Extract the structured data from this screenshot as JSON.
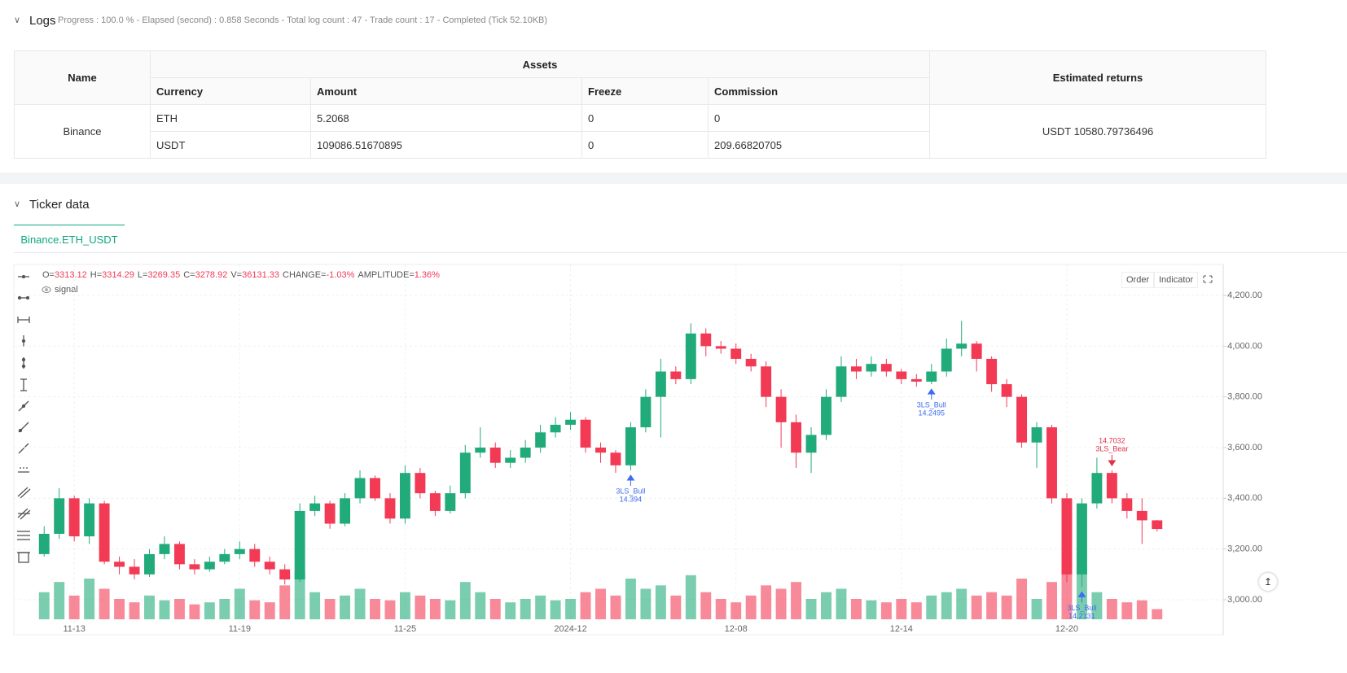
{
  "logs": {
    "title": "Logs",
    "status": "Progress : 100.0 % - Elapsed (second) : 0.858  Seconds - Total log count : 47 - Trade count : 17 - Completed (Tick 52.10KB)"
  },
  "table": {
    "headers": {
      "name": "Name",
      "assets": "Assets",
      "returns": "Estimated returns",
      "columns": [
        "Currency",
        "Amount",
        "Freeze",
        "Commission"
      ]
    },
    "exchange": "Binance",
    "returns": "USDT 10580.79736496",
    "rows": [
      [
        "ETH",
        "5.2068",
        "0",
        "0"
      ],
      [
        "USDT",
        "109086.51670895",
        "0",
        "209.66820705"
      ]
    ]
  },
  "ticker": {
    "title": "Ticker data",
    "tab": "Binance.ETH_USDT",
    "buttons": [
      "Order",
      "Indicator"
    ],
    "legend": "signal"
  },
  "chart_data": {
    "type": "candlestick",
    "info": [
      {
        "label": "O=",
        "value": "3313.12"
      },
      {
        "label": "H=",
        "value": "3314.29"
      },
      {
        "label": "L=",
        "value": "3269.35"
      },
      {
        "label": "C=",
        "value": "3278.92"
      },
      {
        "label": "V=",
        "value": "36131.33"
      },
      {
        "label": "CHANGE=",
        "value": "-1.03%"
      },
      {
        "label": "AMPLITUDE=",
        "value": "1.36%"
      }
    ],
    "categories": [
      null,
      null,
      "11-13",
      null,
      null,
      null,
      null,
      null,
      null,
      null,
      null,
      null,
      null,
      "11-19",
      null,
      null,
      null,
      null,
      null,
      null,
      null,
      null,
      null,
      null,
      "11-25",
      null,
      null,
      null,
      null,
      null,
      null,
      null,
      null,
      null,
      null,
      "2024-12",
      null,
      null,
      null,
      null,
      null,
      null,
      null,
      null,
      null,
      null,
      "12-08",
      null,
      null,
      null,
      null,
      null,
      null,
      null,
      null,
      null,
      null,
      "12-14",
      null,
      null,
      null,
      null,
      null,
      null,
      null,
      null,
      null,
      null,
      "12-20",
      null,
      null,
      null,
      null,
      null,
      null
    ],
    "open": [
      3180,
      3260,
      3400,
      3250,
      3380,
      3150,
      3130,
      3100,
      3180,
      3220,
      3140,
      3120,
      3150,
      3180,
      3200,
      3150,
      3120,
      3080,
      3350,
      3380,
      3300,
      3400,
      3480,
      3400,
      3320,
      3500,
      3420,
      3350,
      3420,
      3580,
      3600,
      3540,
      3560,
      3600,
      3660,
      3690,
      3710,
      3600,
      3580,
      3530,
      3680,
      3800,
      3900,
      3870,
      4050,
      4000,
      3990,
      3950,
      3920,
      3800,
      3700,
      3580,
      3650,
      3800,
      3920,
      3900,
      3930,
      3900,
      3870,
      3860,
      3900,
      3990,
      4010,
      3950,
      3850,
      3800,
      3620,
      3680,
      3400,
      3100,
      3380,
      3500,
      3400,
      3350,
      3313.12
    ],
    "high": [
      3290,
      3440,
      3410,
      3400,
      3390,
      3170,
      3160,
      3200,
      3250,
      3230,
      3160,
      3170,
      3200,
      3230,
      3220,
      3170,
      3140,
      3380,
      3410,
      3390,
      3420,
      3510,
      3490,
      3420,
      3530,
      3520,
      3430,
      3450,
      3610,
      3680,
      3620,
      3590,
      3630,
      3690,
      3720,
      3740,
      3720,
      3620,
      3590,
      3700,
      3830,
      3950,
      3920,
      4090,
      4070,
      4020,
      4010,
      3970,
      3940,
      3830,
      3730,
      3680,
      3830,
      3960,
      3950,
      3960,
      3950,
      3910,
      3890,
      3930,
      4030,
      4100,
      4020,
      3960,
      3870,
      3810,
      3700,
      3690,
      3420,
      3400,
      3560,
      3510,
      3420,
      3400,
      3314.29
    ],
    "low": [
      3170,
      3240,
      3230,
      3220,
      3140,
      3100,
      3080,
      3090,
      3160,
      3120,
      3100,
      3110,
      3140,
      3160,
      3130,
      3100,
      3060,
      3070,
      3330,
      3280,
      3290,
      3380,
      3390,
      3300,
      3300,
      3400,
      3330,
      3340,
      3400,
      3560,
      3520,
      3520,
      3540,
      3580,
      3640,
      3670,
      3580,
      3540,
      3500,
      3510,
      3660,
      3640,
      3850,
      3850,
      3960,
      3970,
      3930,
      3900,
      3760,
      3600,
      3520,
      3500,
      3630,
      3780,
      3870,
      3880,
      3880,
      3850,
      3840,
      3850,
      3880,
      3960,
      3900,
      3820,
      3760,
      3600,
      3520,
      3380,
      3070,
      3050,
      3360,
      3380,
      3320,
      3220,
      3269.35
    ],
    "close": [
      3260,
      3400,
      3250,
      3380,
      3150,
      3130,
      3100,
      3180,
      3220,
      3140,
      3120,
      3150,
      3180,
      3200,
      3150,
      3120,
      3080,
      3350,
      3380,
      3300,
      3400,
      3480,
      3400,
      3320,
      3500,
      3420,
      3350,
      3420,
      3580,
      3600,
      3540,
      3560,
      3600,
      3660,
      3690,
      3710,
      3600,
      3580,
      3530,
      3680,
      3800,
      3900,
      3870,
      4050,
      4000,
      3990,
      3950,
      3920,
      3800,
      3700,
      3580,
      3650,
      3800,
      3920,
      3900,
      3930,
      3900,
      3870,
      3860,
      3900,
      3990,
      4010,
      3950,
      3850,
      3800,
      3620,
      3680,
      3400,
      3100,
      3380,
      3500,
      3400,
      3350,
      3313.12,
      3278.92
    ],
    "volume": [
      40,
      55,
      35,
      60,
      45,
      30,
      25,
      35,
      28,
      30,
      22,
      25,
      30,
      45,
      28,
      25,
      50,
      70,
      40,
      30,
      35,
      45,
      30,
      28,
      40,
      35,
      30,
      28,
      55,
      40,
      30,
      25,
      30,
      35,
      28,
      30,
      40,
      45,
      35,
      60,
      45,
      50,
      35,
      65,
      40,
      30,
      25,
      35,
      50,
      45,
      55,
      30,
      40,
      45,
      30,
      28,
      25,
      30,
      25,
      35,
      40,
      45,
      35,
      40,
      35,
      60,
      30,
      55,
      90,
      75,
      40,
      30,
      25,
      28,
      15
    ],
    "up_color": "#22ab7a",
    "down_color": "#f23a55",
    "signals": [
      {
        "name": "3LS_Bull",
        "value": "14.394"
      },
      {
        "name": "3LS_Bull",
        "value": "14.2495"
      },
      {
        "name": "3LS_Bull",
        "value": "14.2131"
      },
      {
        "name": "3LS_Bear",
        "value": "14.7032"
      }
    ],
    "ylim": [
      2862,
      4322
    ],
    "yticks": [
      {
        "value": 3000,
        "label": "3,000.00"
      },
      {
        "value": 3200,
        "label": "3,200.00"
      },
      {
        "value": 3400,
        "label": "3,400.00"
      },
      {
        "value": 3600,
        "label": "3,600.00"
      },
      {
        "value": 3800,
        "label": "3,800.00"
      },
      {
        "value": 4000,
        "label": "4,000.00"
      },
      {
        "value": 4200,
        "label": "4,200.00"
      }
    ],
    "grid": true
  }
}
